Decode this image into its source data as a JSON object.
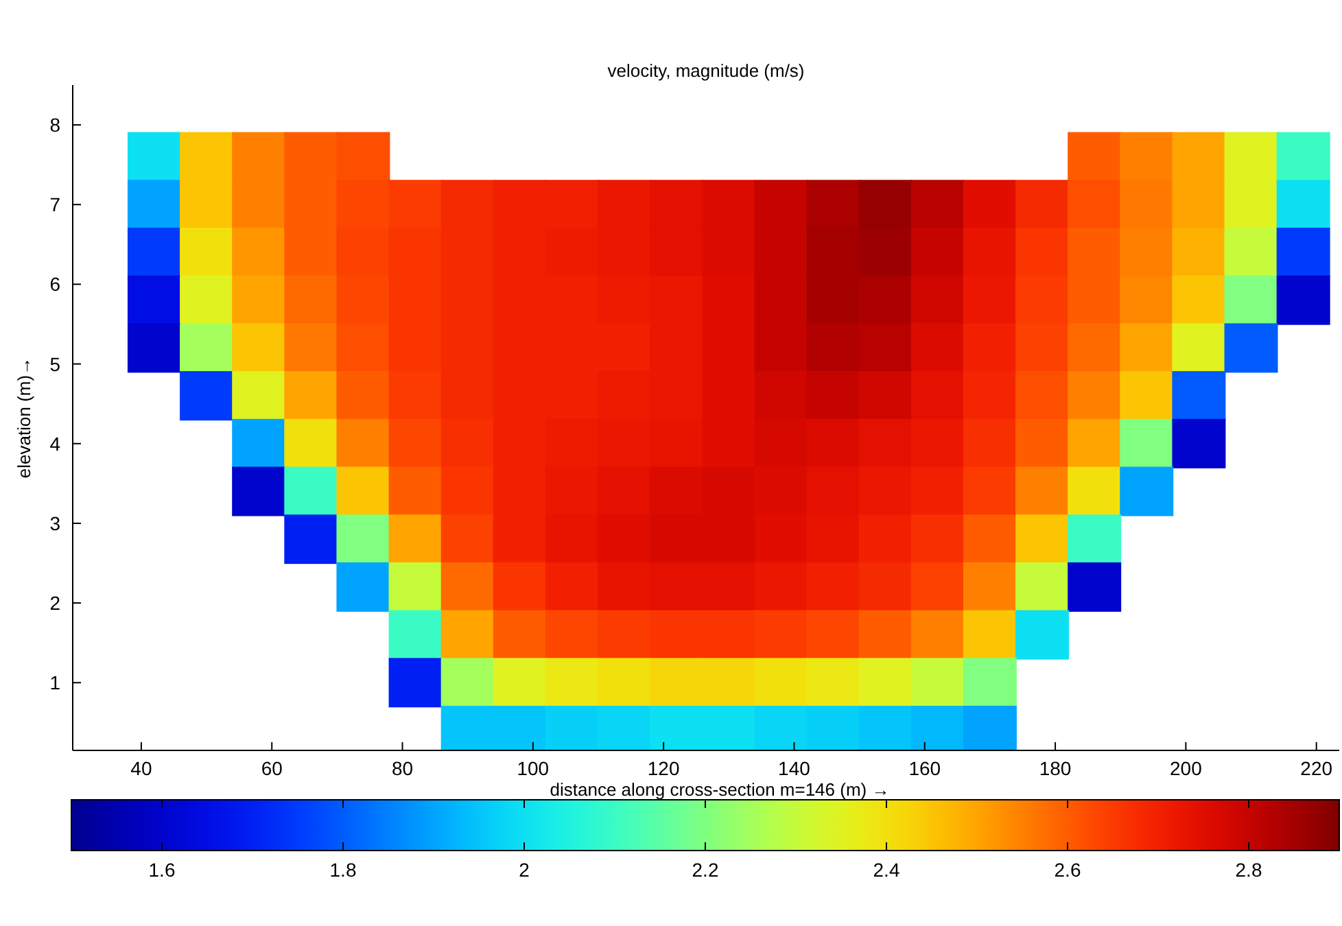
{
  "chart_data": {
    "type": "scatter",
    "title": "velocity, magnitude (m/s)",
    "xlabel": "distance along cross-section m=146 (m) →",
    "ylabel": "elevation (m)→",
    "marker": "square",
    "xlim": [
      29.5,
      223.5
    ],
    "xticks": [
      40,
      60,
      80,
      100,
      120,
      140,
      160,
      180,
      200,
      220
    ],
    "ylim": [
      0.15,
      8.5
    ],
    "yticks": [
      1,
      2,
      3,
      4,
      5,
      6,
      7,
      8
    ],
    "clim": [
      1.5,
      2.9
    ],
    "cticks": [
      1.6,
      1.8,
      2,
      2.2,
      2.4,
      2.6,
      2.8
    ],
    "x": [
      42,
      50,
      58,
      66,
      74,
      186,
      194,
      202,
      210,
      218,
      42,
      50,
      58,
      66,
      74,
      82,
      90,
      98,
      106,
      114,
      122,
      130,
      138,
      146,
      154,
      162,
      170,
      178,
      186,
      194,
      202,
      210,
      218,
      42,
      50,
      58,
      66,
      74,
      82,
      90,
      98,
      106,
      114,
      122,
      130,
      138,
      146,
      154,
      162,
      170,
      178,
      186,
      194,
      202,
      210,
      218,
      42,
      50,
      58,
      66,
      74,
      82,
      90,
      98,
      106,
      114,
      122,
      130,
      138,
      146,
      154,
      162,
      170,
      178,
      186,
      194,
      202,
      210,
      218,
      42,
      50,
      58,
      66,
      74,
      82,
      90,
      98,
      106,
      114,
      122,
      130,
      138,
      146,
      154,
      162,
      170,
      178,
      186,
      194,
      202,
      210,
      50,
      58,
      66,
      74,
      82,
      90,
      98,
      106,
      114,
      122,
      130,
      138,
      146,
      154,
      162,
      170,
      178,
      186,
      194,
      202,
      58,
      66,
      74,
      82,
      90,
      98,
      106,
      114,
      122,
      130,
      138,
      146,
      154,
      162,
      170,
      178,
      186,
      194,
      202,
      58,
      66,
      74,
      82,
      90,
      98,
      106,
      114,
      122,
      130,
      138,
      146,
      154,
      162,
      170,
      178,
      186,
      194,
      66,
      74,
      82,
      90,
      98,
      106,
      114,
      122,
      130,
      138,
      146,
      154,
      162,
      170,
      178,
      186,
      74,
      82,
      90,
      98,
      106,
      114,
      122,
      130,
      138,
      146,
      154,
      162,
      170,
      178,
      186,
      82,
      90,
      98,
      106,
      114,
      122,
      130,
      138,
      146,
      154,
      162,
      170,
      178,
      82,
      90,
      98,
      106,
      114,
      122,
      130,
      138,
      146,
      154,
      162,
      170,
      90,
      98,
      106,
      114,
      122,
      130,
      138,
      146,
      154,
      162,
      170
    ],
    "values": [
      7.6,
      7.6,
      7.6,
      7.6,
      7.6,
      7.6,
      7.6,
      7.6,
      7.6,
      7.6,
      7,
      7,
      7,
      7,
      7,
      7,
      7,
      7,
      7,
      7,
      7,
      7,
      7,
      7,
      7,
      7,
      7,
      7,
      7,
      7,
      7,
      7,
      7,
      6.4,
      6.4,
      6.4,
      6.4,
      6.4,
      6.4,
      6.4,
      6.4,
      6.4,
      6.4,
      6.4,
      6.4,
      6.4,
      6.4,
      6.4,
      6.4,
      6.4,
      6.4,
      6.4,
      6.4,
      6.4,
      6.4,
      6.4,
      5.8,
      5.8,
      5.8,
      5.8,
      5.8,
      5.8,
      5.8,
      5.8,
      5.8,
      5.8,
      5.8,
      5.8,
      5.8,
      5.8,
      5.8,
      5.8,
      5.8,
      5.8,
      5.8,
      5.8,
      5.8,
      5.8,
      5.8,
      5.2,
      5.2,
      5.2,
      5.2,
      5.2,
      5.2,
      5.2,
      5.2,
      5.2,
      5.2,
      5.2,
      5.2,
      5.2,
      5.2,
      5.2,
      5.2,
      5.2,
      5.2,
      5.2,
      5.2,
      5.2,
      5.2,
      4.6,
      4.6,
      4.6,
      4.6,
      4.6,
      4.6,
      4.6,
      4.6,
      4.6,
      4.6,
      4.6,
      4.6,
      4.6,
      4.6,
      4.6,
      4.6,
      4.6,
      4.6,
      4.6,
      4.6,
      4,
      4,
      4,
      4,
      4,
      4,
      4,
      4,
      4,
      4,
      4,
      4,
      4,
      4,
      4,
      4,
      4,
      4,
      4,
      3.4,
      3.4,
      3.4,
      3.4,
      3.4,
      3.4,
      3.4,
      3.4,
      3.4,
      3.4,
      3.4,
      3.4,
      3.4,
      3.4,
      3.4,
      3.4,
      3.4,
      3.4,
      2.8,
      2.8,
      2.8,
      2.8,
      2.8,
      2.8,
      2.8,
      2.8,
      2.8,
      2.8,
      2.8,
      2.8,
      2.8,
      2.8,
      2.8,
      2.8,
      2.2,
      2.2,
      2.2,
      2.2,
      2.2,
      2.2,
      2.2,
      2.2,
      2.2,
      2.2,
      2.2,
      2.2,
      2.2,
      2.2,
      2.2,
      1.6,
      1.6,
      1.6,
      1.6,
      1.6,
      1.6,
      1.6,
      1.6,
      1.6,
      1.6,
      1.6,
      1.6,
      1.6,
      1,
      1,
      1,
      1,
      1,
      1,
      1,
      1,
      1,
      1,
      1,
      1,
      0.4,
      0.4,
      0.4,
      0.4,
      0.4,
      0.4,
      0.4,
      0.4,
      0.4,
      0.4,
      0.4
    ],
    "cvalues": [
      2.0,
      2.45,
      2.55,
      2.6,
      2.62,
      2.6,
      2.55,
      2.5,
      2.35,
      2.1,
      1.9,
      2.45,
      2.55,
      2.6,
      2.63,
      2.65,
      2.68,
      2.7,
      2.7,
      2.72,
      2.74,
      2.76,
      2.8,
      2.84,
      2.87,
      2.82,
      2.75,
      2.68,
      2.62,
      2.56,
      2.5,
      2.35,
      2.0,
      1.75,
      2.4,
      2.52,
      2.6,
      2.64,
      2.66,
      2.68,
      2.7,
      2.71,
      2.72,
      2.74,
      2.76,
      2.8,
      2.85,
      2.86,
      2.8,
      2.73,
      2.66,
      2.6,
      2.55,
      2.48,
      2.3,
      1.75,
      1.65,
      2.35,
      2.5,
      2.58,
      2.63,
      2.66,
      2.68,
      2.7,
      2.7,
      2.71,
      2.72,
      2.75,
      2.8,
      2.85,
      2.84,
      2.78,
      2.72,
      2.65,
      2.6,
      2.54,
      2.45,
      2.2,
      1.6,
      1.6,
      2.25,
      2.45,
      2.56,
      2.62,
      2.66,
      2.68,
      2.7,
      2.7,
      2.7,
      2.72,
      2.75,
      2.8,
      2.83,
      2.82,
      2.76,
      2.7,
      2.64,
      2.58,
      2.5,
      2.35,
      1.8,
      1.75,
      2.35,
      2.5,
      2.6,
      2.65,
      2.68,
      2.7,
      2.7,
      2.71,
      2.72,
      2.75,
      2.78,
      2.8,
      2.78,
      2.74,
      2.69,
      2.62,
      2.55,
      2.45,
      1.8,
      1.9,
      2.4,
      2.55,
      2.63,
      2.67,
      2.7,
      2.71,
      2.72,
      2.73,
      2.75,
      2.77,
      2.76,
      2.74,
      2.72,
      2.67,
      2.6,
      2.5,
      2.2,
      1.6,
      1.6,
      2.1,
      2.45,
      2.6,
      2.66,
      2.7,
      2.72,
      2.74,
      2.76,
      2.77,
      2.76,
      2.74,
      2.72,
      2.7,
      2.65,
      2.55,
      2.4,
      1.9,
      1.7,
      2.2,
      2.5,
      2.64,
      2.7,
      2.73,
      2.75,
      2.77,
      2.77,
      2.75,
      2.73,
      2.7,
      2.67,
      2.6,
      2.45,
      2.1,
      1.9,
      2.3,
      2.58,
      2.66,
      2.7,
      2.73,
      2.74,
      2.74,
      2.72,
      2.7,
      2.68,
      2.64,
      2.55,
      2.3,
      1.6,
      2.1,
      2.5,
      2.6,
      2.63,
      2.65,
      2.66,
      2.66,
      2.65,
      2.63,
      2.6,
      2.55,
      2.45,
      2.0,
      1.7,
      2.25,
      2.35,
      2.38,
      2.4,
      2.42,
      2.42,
      2.4,
      2.38,
      2.35,
      2.3,
      2.2,
      1.95,
      1.95,
      1.97,
      1.98,
      2.0,
      2.0,
      1.98,
      1.97,
      1.95,
      1.93,
      1.9
    ]
  }
}
